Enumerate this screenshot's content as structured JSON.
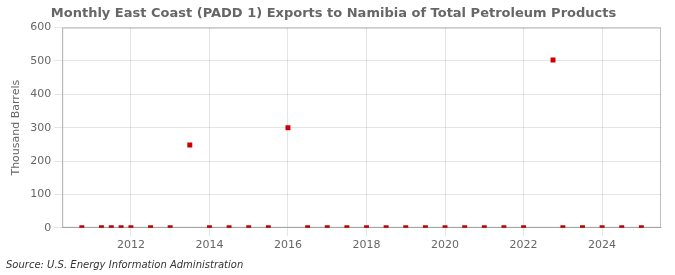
{
  "chart_data": {
    "type": "scatter",
    "title": "Monthly East Coast (PADD 1) Exports to Namibia of Total Petroleum Products",
    "ylabel": "Thousand Barrels",
    "source": "Source: U.S. Energy Information Administration",
    "x": [
      2010.75,
      2011.25,
      2011.5,
      2011.75,
      2012.0,
      2012.5,
      2013.0,
      2013.5,
      2014.0,
      2014.5,
      2015.0,
      2015.5,
      2016.0,
      2016.5,
      2017.0,
      2017.5,
      2018.0,
      2018.5,
      2019.0,
      2019.5,
      2020.0,
      2020.5,
      2021.0,
      2021.5,
      2022.0,
      2022.75,
      2023.0,
      2023.5,
      2024.0,
      2024.5,
      2025.0
    ],
    "values": [
      0,
      0,
      0,
      0,
      0,
      0,
      0,
      248,
      0,
      0,
      0,
      0,
      300,
      0,
      0,
      0,
      0,
      0,
      0,
      0,
      0,
      0,
      0,
      0,
      0,
      503,
      0,
      0,
      0,
      0,
      0
    ],
    "color": "#cc0000",
    "marker": "square",
    "xlim": [
      2010.25,
      2025.5
    ],
    "ylim": [
      0,
      600
    ],
    "xticks": [
      2012,
      2014,
      2016,
      2018,
      2020,
      2022,
      2024
    ],
    "yticks": [
      0,
      100,
      200,
      300,
      400,
      500,
      600
    ],
    "grid": true
  }
}
